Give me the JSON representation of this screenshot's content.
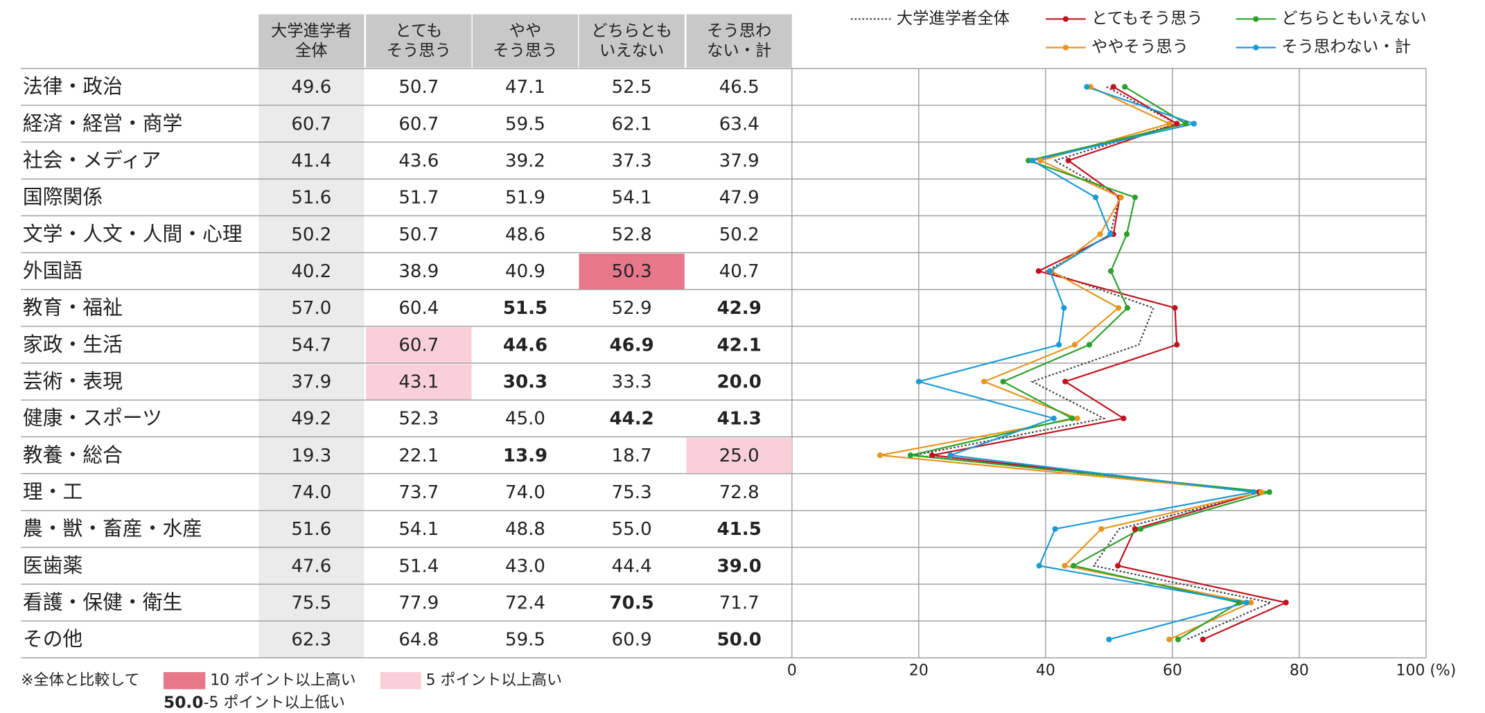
{
  "chart_data": {
    "type": "line",
    "orientation": "horizontal",
    "categories": [
      "法律・政治",
      "経済・経営・商学",
      "社会・メディア",
      "国際関係",
      "文学・人文・人間・心理",
      "外国語",
      "教育・福祉",
      "家政・生活",
      "芸術・表現",
      "健康・スポーツ",
      "教養・総合",
      "理・工",
      "農・獣・畜産・水産",
      "医歯薬",
      "看護・保健・衛生",
      "その他"
    ],
    "column_headers": [
      [
        "大学進学者",
        "全体"
      ],
      [
        "とても",
        "そう思う"
      ],
      [
        "やや",
        "そう思う"
      ],
      [
        "どちらとも",
        "いえない"
      ],
      [
        "そう思わ",
        "ない・計"
      ]
    ],
    "series": [
      {
        "name": "大学進学者全体",
        "color": "#444444",
        "dashed": true,
        "values": [
          49.6,
          60.7,
          41.4,
          51.6,
          50.2,
          40.2,
          57.0,
          54.7,
          37.9,
          49.2,
          19.3,
          74.0,
          51.6,
          47.6,
          75.5,
          62.3
        ],
        "value_labels": [
          "49.6",
          "60.7",
          "41.4",
          "51.6",
          "50.2",
          "40.2",
          "57.0",
          "54.7",
          "37.9",
          "49.2",
          "19.3",
          "74.0",
          "51.6",
          "47.6",
          "75.5",
          "62.3"
        ]
      },
      {
        "name": "とてもそう思う",
        "color": "#c0121f",
        "values": [
          50.7,
          60.7,
          43.6,
          51.7,
          50.7,
          38.9,
          60.4,
          60.7,
          43.1,
          52.3,
          22.1,
          73.7,
          54.1,
          51.4,
          77.9,
          64.8
        ],
        "value_labels": [
          "50.7",
          "60.7",
          "43.6",
          "51.7",
          "50.7",
          "38.9",
          "60.4",
          "60.7",
          "43.1",
          "52.3",
          "22.1",
          "73.7",
          "54.1",
          "51.4",
          "77.9",
          "64.8"
        ]
      },
      {
        "name": "ややそう思う",
        "color": "#e8951f",
        "values": [
          47.1,
          59.5,
          39.2,
          51.9,
          48.6,
          40.9,
          51.5,
          44.6,
          30.3,
          45.0,
          13.9,
          74.0,
          48.8,
          43.0,
          72.4,
          59.5
        ],
        "value_labels": [
          "47.1",
          "59.5",
          "39.2",
          "51.9",
          "48.6",
          "40.9",
          "51.5",
          "44.6",
          "30.3",
          "45.0",
          "13.9",
          "74.0",
          "48.8",
          "43.0",
          "72.4",
          "59.5"
        ]
      },
      {
        "name": "どちらともいえない",
        "color": "#2ca02c",
        "values": [
          52.5,
          62.1,
          37.3,
          54.1,
          52.8,
          50.3,
          52.9,
          46.9,
          33.3,
          44.2,
          18.7,
          75.3,
          55.0,
          44.4,
          70.5,
          60.9
        ],
        "value_labels": [
          "52.5",
          "62.1",
          "37.3",
          "54.1",
          "52.8",
          "50.3",
          "52.9",
          "46.9",
          "33.3",
          "44.2",
          "18.7",
          "75.3",
          "55.0",
          "44.4",
          "70.5",
          "60.9"
        ]
      },
      {
        "name": "そう思わない・計",
        "color": "#1a9ad6",
        "values": [
          46.5,
          63.4,
          37.9,
          47.9,
          50.2,
          40.7,
          42.9,
          42.1,
          20.0,
          41.3,
          25.0,
          72.8,
          41.5,
          39.0,
          71.7,
          50.0
        ],
        "value_labels": [
          "46.5",
          "63.4",
          "37.9",
          "47.9",
          "50.2",
          "40.7",
          "42.9",
          "42.1",
          "20.0",
          "41.3",
          "25.0",
          "72.8",
          "41.5",
          "39.0",
          "71.7",
          "50.0"
        ]
      }
    ],
    "xlim": [
      0,
      100
    ],
    "xticks": [
      0,
      20,
      40,
      60,
      80,
      {
        "value": 100,
        "label": "100 (%)"
      }
    ],
    "grid": true,
    "highlight_legend": {
      "note": "※全体と比較して",
      "items": [
        {
          "threshold": 10,
          "color": "#e8778a",
          "label": "10 ポイント以上高い"
        },
        {
          "threshold": 5,
          "color": "#f9d0da",
          "label": "5 ポイント以上高い"
        },
        {
          "threshold": -5,
          "color": "#1a7fc1",
          "sample": "50.0",
          "label": "-5 ポイント以上低い"
        }
      ]
    }
  }
}
